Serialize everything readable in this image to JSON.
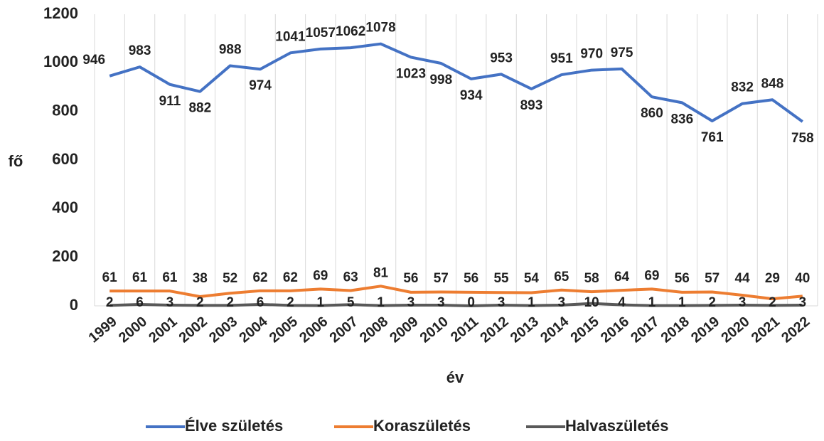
{
  "chart_data": {
    "type": "line",
    "categories": [
      "1999",
      "2000",
      "2001",
      "2002",
      "2003",
      "2004",
      "2005",
      "2006",
      "2007",
      "2008",
      "2009",
      "2010",
      "2011",
      "2012",
      "2013",
      "2014",
      "2015",
      "2016",
      "2017",
      "2018",
      "2019",
      "2020",
      "2021",
      "2022"
    ],
    "series": [
      {
        "name": "Élve születés",
        "color": "#4472c4",
        "values": [
          946,
          983,
          911,
          882,
          988,
          974,
          1041,
          1057,
          1062,
          1078,
          1023,
          998,
          934,
          953,
          893,
          951,
          970,
          975,
          860,
          836,
          761,
          832,
          848,
          758
        ]
      },
      {
        "name": "Koraszületés",
        "color": "#ed7d31",
        "values": [
          61,
          61,
          61,
          38,
          52,
          62,
          62,
          69,
          63,
          81,
          56,
          57,
          56,
          55,
          54,
          65,
          58,
          64,
          69,
          56,
          57,
          44,
          29,
          40
        ]
      },
      {
        "name": "Halvaszületés",
        "color": "#595959",
        "values": [
          2,
          6,
          3,
          2,
          2,
          6,
          2,
          1,
          5,
          1,
          3,
          3,
          0,
          3,
          1,
          3,
          10,
          4,
          1,
          1,
          2,
          3,
          2,
          3
        ]
      }
    ],
    "ylim": [
      0,
      1200
    ],
    "yticks": [
      0,
      200,
      400,
      600,
      800,
      1000,
      1200
    ],
    "ylabel": "fő",
    "xlabel": "év",
    "legend": "bottom"
  }
}
